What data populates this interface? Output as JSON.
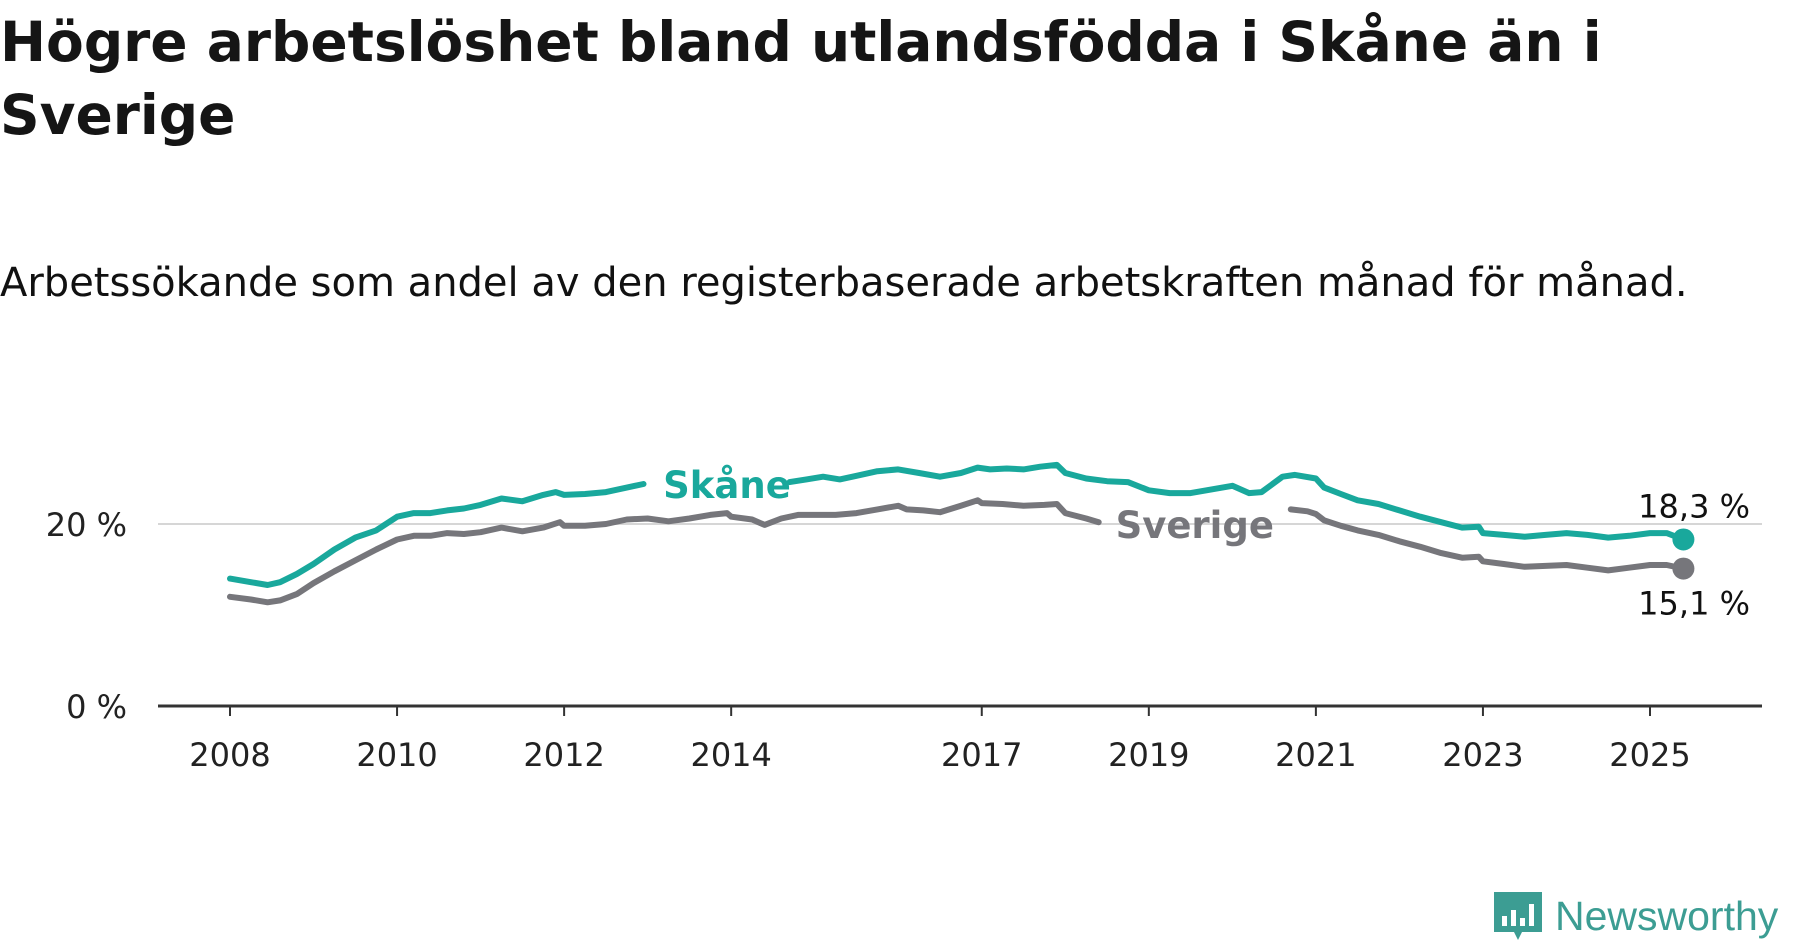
{
  "title": "Högre arbetslöshet bland utlandsfödda i Skåne än i Sverige",
  "subtitle": "Arbetssökande som andel av den registerbaserade arbetskraften månad för månad.",
  "brand": {
    "name": "Newsworthy",
    "color": "#3c9d93"
  },
  "chart_data": {
    "type": "line",
    "title": "Högre arbetslöshet bland utlandsfödda i Skåne än i Sverige",
    "subtitle": "Arbetssökande som andel av den registerbaserade arbetskraften månad för månad.",
    "xlabel": "",
    "ylabel": "",
    "x_range": [
      2007.4,
      2026.6
    ],
    "ylim": [
      0,
      30
    ],
    "y_ticks": [
      0,
      20
    ],
    "y_tick_labels": [
      "0 %",
      "20 %"
    ],
    "x_ticks": [
      2008,
      2010,
      2012,
      2014,
      2017,
      2019,
      2021,
      2023,
      2025
    ],
    "x_tick_labels": [
      "2008",
      "2010",
      "2012",
      "2014",
      "2017",
      "2019",
      "2021",
      "2023",
      "2025"
    ],
    "grid": "horizontal line at 20 %",
    "legend": "inline labels on the lines",
    "series": [
      {
        "name": "Skåne",
        "color": "#19a89c",
        "end_label": "18,3 %",
        "points": [
          [
            2008.0,
            14.0
          ],
          [
            2008.25,
            13.6
          ],
          [
            2008.45,
            13.3
          ],
          [
            2008.6,
            13.6
          ],
          [
            2008.8,
            14.5
          ],
          [
            2009.0,
            15.6
          ],
          [
            2009.25,
            17.2
          ],
          [
            2009.5,
            18.5
          ],
          [
            2009.75,
            19.3
          ],
          [
            2010.0,
            20.8
          ],
          [
            2010.2,
            21.2
          ],
          [
            2010.4,
            21.2
          ],
          [
            2010.6,
            21.5
          ],
          [
            2010.8,
            21.7
          ],
          [
            2011.0,
            22.1
          ],
          [
            2011.25,
            22.8
          ],
          [
            2011.5,
            22.5
          ],
          [
            2011.75,
            23.2
          ],
          [
            2011.9,
            23.5
          ],
          [
            2012.0,
            23.2
          ],
          [
            2012.25,
            23.3
          ],
          [
            2012.5,
            23.5
          ],
          [
            2012.75,
            24.0
          ],
          [
            2012.95,
            24.4
          ]
        ],
        "segments_after_label": [
          [
            2014.7,
            24.6
          ],
          [
            2014.9,
            24.9
          ],
          [
            2015.1,
            25.2
          ],
          [
            2015.3,
            24.9
          ],
          [
            2015.5,
            25.3
          ],
          [
            2015.75,
            25.8
          ],
          [
            2016.0,
            26.0
          ],
          [
            2016.25,
            25.6
          ],
          [
            2016.5,
            25.2
          ],
          [
            2016.75,
            25.6
          ],
          [
            2016.95,
            26.2
          ],
          [
            2017.1,
            26.0
          ],
          [
            2017.3,
            26.1
          ],
          [
            2017.5,
            26.0
          ],
          [
            2017.7,
            26.3
          ],
          [
            2017.9,
            26.5
          ],
          [
            2018.0,
            25.6
          ],
          [
            2018.25,
            25.0
          ],
          [
            2018.5,
            24.7
          ],
          [
            2018.75,
            24.6
          ],
          [
            2019.0,
            23.7
          ],
          [
            2019.25,
            23.4
          ],
          [
            2019.5,
            23.4
          ],
          [
            2019.75,
            23.8
          ],
          [
            2020.0,
            24.2
          ],
          [
            2020.2,
            23.4
          ],
          [
            2020.35,
            23.5
          ],
          [
            2020.6,
            25.2
          ],
          [
            2020.75,
            25.4
          ],
          [
            2021.0,
            25.0
          ],
          [
            2021.1,
            24.0
          ],
          [
            2021.3,
            23.3
          ],
          [
            2021.5,
            22.6
          ],
          [
            2021.75,
            22.2
          ],
          [
            2022.0,
            21.5
          ],
          [
            2022.25,
            20.8
          ],
          [
            2022.5,
            20.2
          ],
          [
            2022.75,
            19.6
          ],
          [
            2022.95,
            19.7
          ],
          [
            2023.0,
            19.0
          ],
          [
            2023.25,
            18.8
          ],
          [
            2023.5,
            18.6
          ],
          [
            2023.75,
            18.8
          ],
          [
            2024.0,
            19.0
          ],
          [
            2024.25,
            18.8
          ],
          [
            2024.5,
            18.5
          ],
          [
            2024.75,
            18.7
          ],
          [
            2025.0,
            19.0
          ],
          [
            2025.2,
            19.0
          ],
          [
            2025.4,
            18.3
          ]
        ]
      },
      {
        "name": "Sverige",
        "color": "#76767b",
        "end_label": "15,1 %",
        "points": [
          [
            2008.0,
            12.0
          ],
          [
            2008.25,
            11.7
          ],
          [
            2008.45,
            11.4
          ],
          [
            2008.6,
            11.6
          ],
          [
            2008.8,
            12.3
          ],
          [
            2009.0,
            13.5
          ],
          [
            2009.25,
            14.8
          ],
          [
            2009.5,
            16.0
          ],
          [
            2009.75,
            17.2
          ],
          [
            2010.0,
            18.3
          ],
          [
            2010.2,
            18.7
          ],
          [
            2010.4,
            18.7
          ],
          [
            2010.6,
            19.0
          ],
          [
            2010.8,
            18.9
          ],
          [
            2011.0,
            19.1
          ],
          [
            2011.25,
            19.6
          ],
          [
            2011.5,
            19.2
          ],
          [
            2011.75,
            19.6
          ],
          [
            2011.95,
            20.2
          ],
          [
            2012.0,
            19.8
          ],
          [
            2012.25,
            19.8
          ],
          [
            2012.5,
            20.0
          ],
          [
            2012.75,
            20.5
          ],
          [
            2013.0,
            20.6
          ],
          [
            2013.25,
            20.3
          ],
          [
            2013.5,
            20.6
          ],
          [
            2013.75,
            21.0
          ],
          [
            2013.95,
            21.2
          ],
          [
            2014.0,
            20.8
          ],
          [
            2014.25,
            20.5
          ],
          [
            2014.4,
            19.9
          ],
          [
            2014.6,
            20.6
          ],
          [
            2014.8,
            21.0
          ],
          [
            2015.0,
            21.0
          ],
          [
            2015.25,
            21.0
          ],
          [
            2015.5,
            21.2
          ],
          [
            2015.75,
            21.6
          ],
          [
            2016.0,
            22.0
          ],
          [
            2016.1,
            21.6
          ],
          [
            2016.3,
            21.5
          ],
          [
            2016.5,
            21.3
          ],
          [
            2016.75,
            22.0
          ],
          [
            2016.95,
            22.6
          ],
          [
            2017.0,
            22.3
          ],
          [
            2017.25,
            22.2
          ],
          [
            2017.5,
            22.0
          ],
          [
            2017.75,
            22.1
          ],
          [
            2017.9,
            22.2
          ],
          [
            2018.0,
            21.2
          ],
          [
            2018.25,
            20.6
          ],
          [
            2018.4,
            20.2
          ]
        ],
        "segments_after_label": [
          [
            2020.7,
            21.6
          ],
          [
            2020.9,
            21.4
          ],
          [
            2021.0,
            21.1
          ],
          [
            2021.1,
            20.4
          ],
          [
            2021.3,
            19.8
          ],
          [
            2021.5,
            19.3
          ],
          [
            2021.75,
            18.8
          ],
          [
            2022.0,
            18.1
          ],
          [
            2022.25,
            17.5
          ],
          [
            2022.5,
            16.8
          ],
          [
            2022.75,
            16.3
          ],
          [
            2022.95,
            16.4
          ],
          [
            2023.0,
            15.9
          ],
          [
            2023.25,
            15.6
          ],
          [
            2023.5,
            15.3
          ],
          [
            2023.75,
            15.4
          ],
          [
            2024.0,
            15.5
          ],
          [
            2024.25,
            15.2
          ],
          [
            2024.5,
            14.9
          ],
          [
            2024.75,
            15.2
          ],
          [
            2025.0,
            15.5
          ],
          [
            2025.2,
            15.5
          ],
          [
            2025.4,
            15.1
          ]
        ]
      }
    ]
  }
}
